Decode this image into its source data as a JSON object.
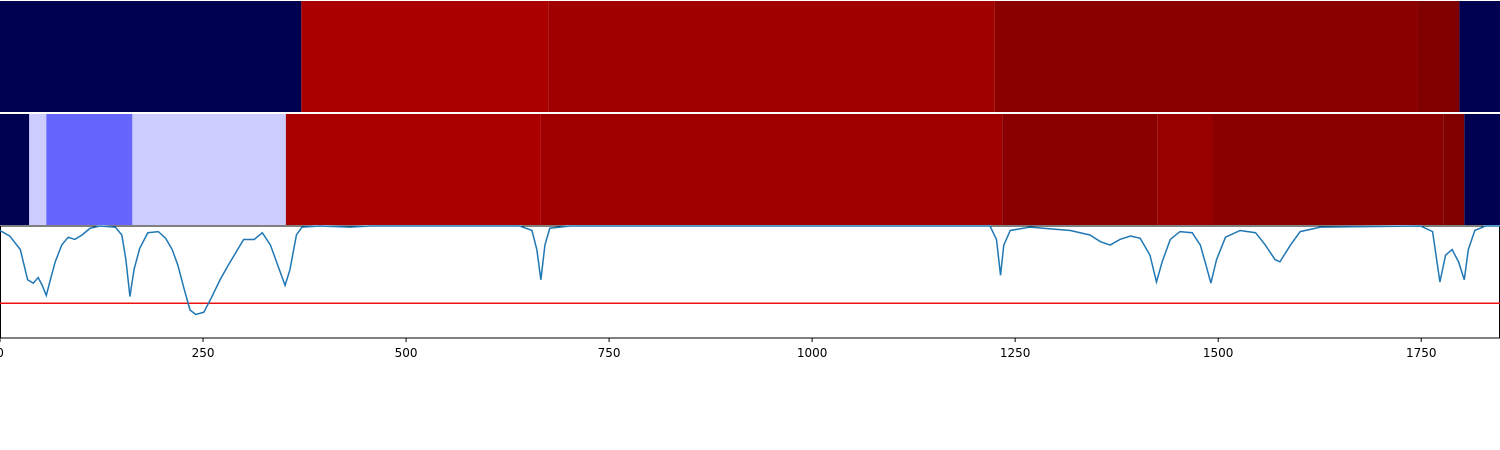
{
  "chart_data": [
    {
      "type": "segments",
      "xlim": [
        0,
        1847
      ],
      "segments": [
        {
          "start": 0,
          "end": 371,
          "color": "#000050"
        },
        {
          "start": 371,
          "end": 675,
          "color": "#aa0000"
        },
        {
          "start": 675,
          "end": 1225,
          "color": "#a00000"
        },
        {
          "start": 1225,
          "end": 1746,
          "color": "#8a0000"
        },
        {
          "start": 1746,
          "end": 1797,
          "color": "#800000"
        },
        {
          "start": 1797,
          "end": 1847,
          "color": "#000050"
        }
      ]
    },
    {
      "type": "segments",
      "xlim": [
        0,
        1847
      ],
      "segments": [
        {
          "start": 0,
          "end": 36,
          "color": "#000050"
        },
        {
          "start": 36,
          "end": 57,
          "color": "#ccccff"
        },
        {
          "start": 57,
          "end": 163,
          "color": "#6666ff"
        },
        {
          "start": 163,
          "end": 352,
          "color": "#ccccff"
        },
        {
          "start": 352,
          "end": 666,
          "color": "#aa0000"
        },
        {
          "start": 666,
          "end": 1234,
          "color": "#a00000"
        },
        {
          "start": 1234,
          "end": 1425,
          "color": "#8a0000"
        },
        {
          "start": 1425,
          "end": 1493,
          "color": "#990000"
        },
        {
          "start": 1493,
          "end": 1777,
          "color": "#8a0000"
        },
        {
          "start": 1777,
          "end": 1803,
          "color": "#800000"
        },
        {
          "start": 1803,
          "end": 1847,
          "color": "#000050"
        }
      ]
    },
    {
      "type": "line",
      "xlim": [
        0,
        1847
      ],
      "ylim": [
        0,
        1
      ],
      "xticks": [
        0,
        250,
        500,
        750,
        1000,
        1250,
        1500,
        1750
      ],
      "threshold": 0.31,
      "threshold_color": "#ee1111",
      "series": [
        {
          "color": "#1f77b4",
          "x": [
            0,
            12,
            25,
            34,
            41,
            47,
            52,
            57,
            62,
            68,
            76,
            84,
            92,
            101,
            111,
            123,
            142,
            150,
            155,
            160,
            165,
            172,
            182,
            195,
            204,
            212,
            219,
            227,
            234,
            241,
            251,
            261,
            271,
            281,
            291,
            300,
            313,
            323,
            333,
            342,
            351,
            357,
            365,
            372,
            394,
            431,
            456,
            640,
            655,
            661,
            666,
            671,
            677,
            702,
            1219,
            1227,
            1232,
            1236,
            1244,
            1268,
            1318,
            1342,
            1355,
            1367,
            1379,
            1392,
            1404,
            1416,
            1424,
            1431,
            1441,
            1453,
            1468,
            1478,
            1485,
            1491,
            1498,
            1509,
            1527,
            1546,
            1558,
            1570,
            1576,
            1589,
            1601,
            1626,
            1749,
            1764,
            1773,
            1780,
            1788,
            1796,
            1803,
            1808,
            1816,
            1829,
            1847
          ],
          "values": [
            0.96,
            0.91,
            0.79,
            0.52,
            0.49,
            0.54,
            0.47,
            0.38,
            0.52,
            0.68,
            0.83,
            0.9,
            0.88,
            0.92,
            0.98,
            1.0,
            0.99,
            0.92,
            0.7,
            0.37,
            0.61,
            0.8,
            0.94,
            0.95,
            0.89,
            0.79,
            0.65,
            0.43,
            0.25,
            0.21,
            0.23,
            0.37,
            0.52,
            0.65,
            0.77,
            0.88,
            0.88,
            0.94,
            0.83,
            0.65,
            0.47,
            0.61,
            0.92,
            0.99,
            1.0,
            0.99,
            1.0,
            1.0,
            0.96,
            0.79,
            0.52,
            0.83,
            0.98,
            1.0,
            1.0,
            0.88,
            0.56,
            0.83,
            0.96,
            0.99,
            0.96,
            0.92,
            0.86,
            0.83,
            0.88,
            0.91,
            0.89,
            0.74,
            0.5,
            0.68,
            0.88,
            0.95,
            0.94,
            0.83,
            0.65,
            0.49,
            0.7,
            0.9,
            0.96,
            0.94,
            0.83,
            0.7,
            0.68,
            0.83,
            0.95,
            0.99,
            1.0,
            0.95,
            0.5,
            0.74,
            0.79,
            0.68,
            0.52,
            0.79,
            0.96,
            1.0,
            1.0
          ]
        }
      ]
    }
  ]
}
